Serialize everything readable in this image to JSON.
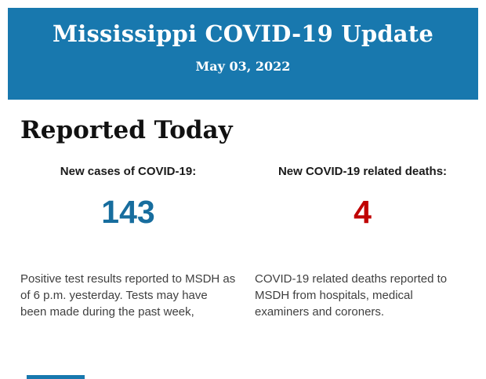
{
  "header": {
    "title": "Mississippi COVID-19 Update",
    "date": "May 03, 2022",
    "background_color": "#1878ae",
    "text_color": "#ffffff"
  },
  "section": {
    "heading": "Reported Today",
    "heading_color": "#111111"
  },
  "stats": [
    {
      "label": "New cases of COVID-19:",
      "value": "143",
      "value_color": "#176d9e",
      "description": "Positive test results reported to MSDH as of 6 p.m. yesterday. Tests may have been made during the past week,"
    },
    {
      "label": "New COVID-19 related deaths:",
      "value": "4",
      "value_color": "#c00000",
      "description": "COVID-19 related deaths reported to MSDH from hospitals, medical examiners and coroners."
    }
  ],
  "footer": {
    "partial_banner_color": "#1878ae"
  }
}
